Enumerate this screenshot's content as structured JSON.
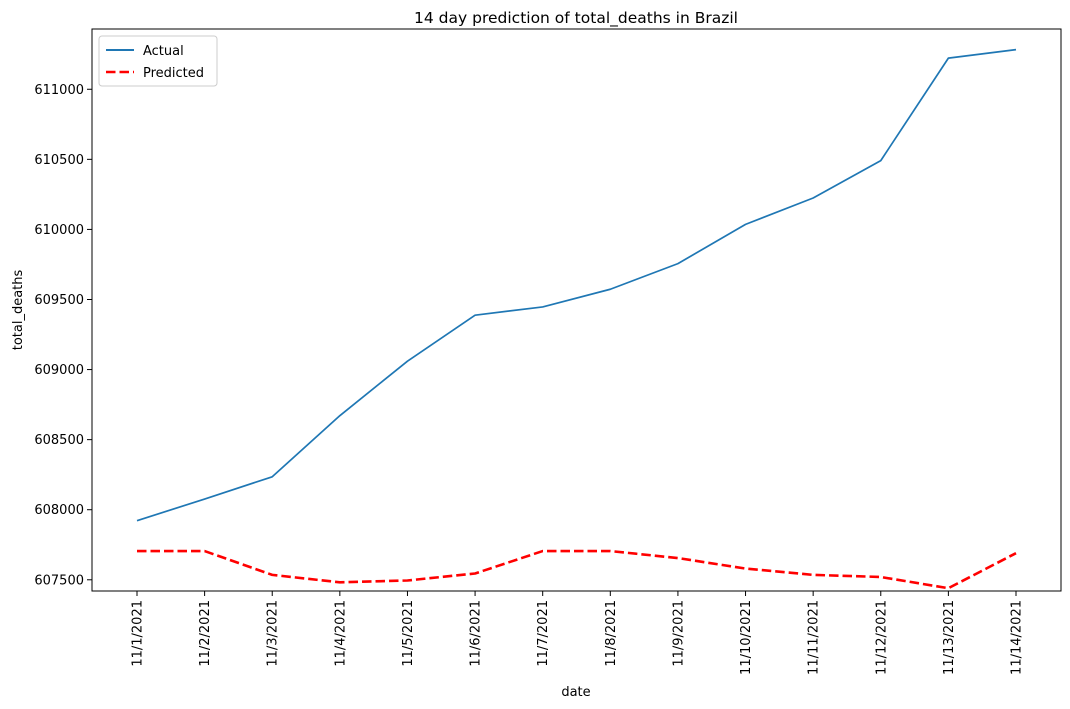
{
  "chart_data": {
    "type": "line",
    "title": "14 day prediction of total_deaths in Brazil",
    "xlabel": "date",
    "ylabel": "total_deaths",
    "categories": [
      "11/1/2021",
      "11/2/2021",
      "11/3/2021",
      "11/4/2021",
      "11/5/2021",
      "11/6/2021",
      "11/7/2021",
      "11/8/2021",
      "11/9/2021",
      "11/10/2021",
      "11/11/2021",
      "11/12/2021",
      "11/13/2021",
      "11/14/2021"
    ],
    "yticks": [
      607500,
      608000,
      608500,
      609000,
      609500,
      610000,
      610500,
      611000
    ],
    "ylim": [
      607420,
      611430
    ],
    "grid": false,
    "legend_position": "upper-left",
    "series": [
      {
        "name": "Actual",
        "color": "#1f77b4",
        "style": "solid",
        "values": [
          607922,
          608076,
          608235,
          608671,
          609060,
          609388,
          609447,
          609573,
          609756,
          610036,
          610224,
          610491,
          611222,
          611283
        ]
      },
      {
        "name": "Predicted",
        "color": "#ff0000",
        "style": "dashed",
        "values": [
          607705,
          607705,
          607535,
          607482,
          607495,
          607545,
          607705,
          607705,
          607655,
          607580,
          607535,
          607520,
          607440,
          607690
        ]
      }
    ]
  }
}
